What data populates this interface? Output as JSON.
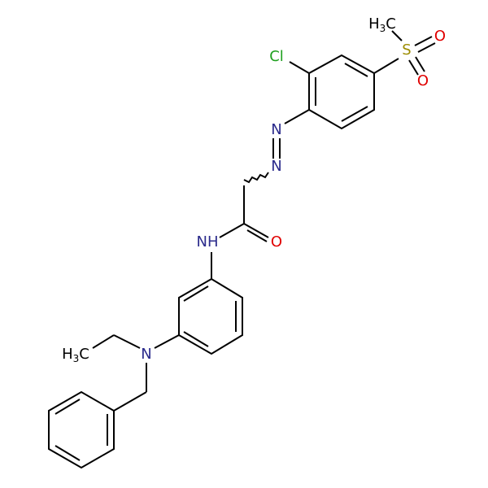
{
  "molecule": {
    "atoms": [
      {
        "main": "H",
        "sub": "3",
        "end": "C"
      },
      {
        "main": "S"
      },
      {
        "main": "O"
      },
      {
        "main": "O"
      },
      {
        "main": "Cl"
      },
      {
        "main": "N"
      },
      {
        "main": "N"
      },
      {
        "main": "NH"
      },
      {
        "main": "O"
      },
      {
        "main": "N"
      },
      {
        "main": "H",
        "sub": "3",
        "end": "C"
      }
    ]
  }
}
